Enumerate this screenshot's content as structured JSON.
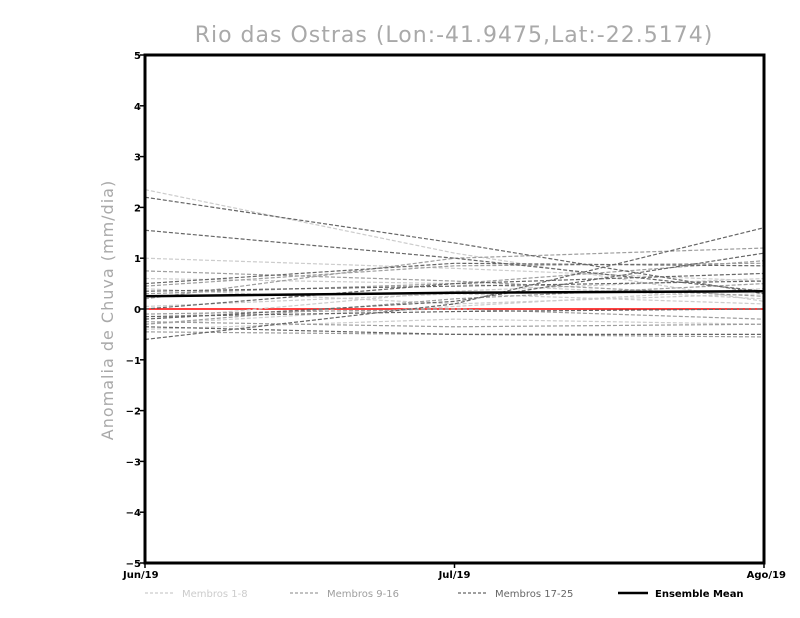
{
  "chart_data": {
    "type": "line",
    "title": "Rio das Ostras (Lon:-41.9475,Lat:-22.5174)",
    "xlabel": "",
    "ylabel": "Anomalia de Chuva (mm/dia)",
    "categories": [
      "Jun/19",
      "Jul/19",
      "Ago/19"
    ],
    "ylim": [
      -5,
      5
    ],
    "yticks": [
      -5,
      -4,
      -3,
      -2,
      -1,
      0,
      1,
      2,
      3,
      4,
      5
    ],
    "grid": false,
    "legend_position": "bottom",
    "zero_line_color": "#ff0000",
    "legend": [
      {
        "label": "Membros 1-8",
        "color": "#cccccc",
        "dashed": true
      },
      {
        "label": "Membros 9-16",
        "color": "#9e9e9e",
        "dashed": true
      },
      {
        "label": "Membros 17-25",
        "color": "#666666",
        "dashed": true
      },
      {
        "label": "Ensemble Mean",
        "color": "#000000",
        "dashed": false
      }
    ],
    "series": [
      {
        "group": "Membros 1-8",
        "values": [
          2.35,
          1.1,
          0.15
        ]
      },
      {
        "group": "Membros 1-8",
        "values": [
          1.0,
          0.8,
          0.55
        ]
      },
      {
        "group": "Membros 1-8",
        "values": [
          0.4,
          0.1,
          0.3
        ]
      },
      {
        "group": "Membros 1-8",
        "values": [
          -0.2,
          0.35,
          0.6
        ]
      },
      {
        "group": "Membros 1-8",
        "values": [
          -0.3,
          0.05,
          0.4
        ]
      },
      {
        "group": "Membros 1-8",
        "values": [
          0.05,
          0.3,
          0.1
        ]
      },
      {
        "group": "Membros 1-8",
        "values": [
          -0.4,
          -0.2,
          -0.3
        ]
      },
      {
        "group": "Membros 1-8",
        "values": [
          0.6,
          0.5,
          0.2
        ]
      },
      {
        "group": "Membros 9-16",
        "values": [
          0.3,
          0.5,
          0.95
        ]
      },
      {
        "group": "Membros 9-16",
        "values": [
          -0.45,
          -0.5,
          -0.55
        ]
      },
      {
        "group": "Membros 9-16",
        "values": [
          0.45,
          0.85,
          0.9
        ]
      },
      {
        "group": "Membros 9-16",
        "values": [
          -0.25,
          -0.35,
          -0.3
        ]
      },
      {
        "group": "Membros 9-16",
        "values": [
          0.75,
          0.55,
          0.25
        ]
      },
      {
        "group": "Membros 9-16",
        "values": [
          -0.1,
          0.0,
          -0.2
        ]
      },
      {
        "group": "Membros 9-16",
        "values": [
          0.2,
          1.0,
          1.2
        ]
      },
      {
        "group": "Membros 9-16",
        "values": [
          -0.3,
          0.2,
          0.5
        ]
      },
      {
        "group": "Membros 17-25",
        "values": [
          2.2,
          1.3,
          0.3
        ]
      },
      {
        "group": "Membros 17-25",
        "values": [
          1.55,
          1.0,
          0.35
        ]
      },
      {
        "group": "Membros 17-25",
        "values": [
          -0.6,
          0.1,
          1.6
        ]
      },
      {
        "group": "Membros 17-25",
        "values": [
          -0.35,
          -0.5,
          -0.5
        ]
      },
      {
        "group": "Membros 17-25",
        "values": [
          0.5,
          0.9,
          0.85
        ]
      },
      {
        "group": "Membros 17-25",
        "values": [
          -0.2,
          0.15,
          1.1
        ]
      },
      {
        "group": "Membros 17-25",
        "values": [
          0.35,
          0.45,
          0.55
        ]
      },
      {
        "group": "Membros 17-25",
        "values": [
          -0.15,
          -0.05,
          0.0
        ]
      },
      {
        "group": "Membros 17-25",
        "values": [
          0.0,
          0.5,
          0.7
        ]
      },
      {
        "group": "Ensemble Mean",
        "values": [
          0.25,
          0.32,
          0.35
        ]
      }
    ]
  }
}
